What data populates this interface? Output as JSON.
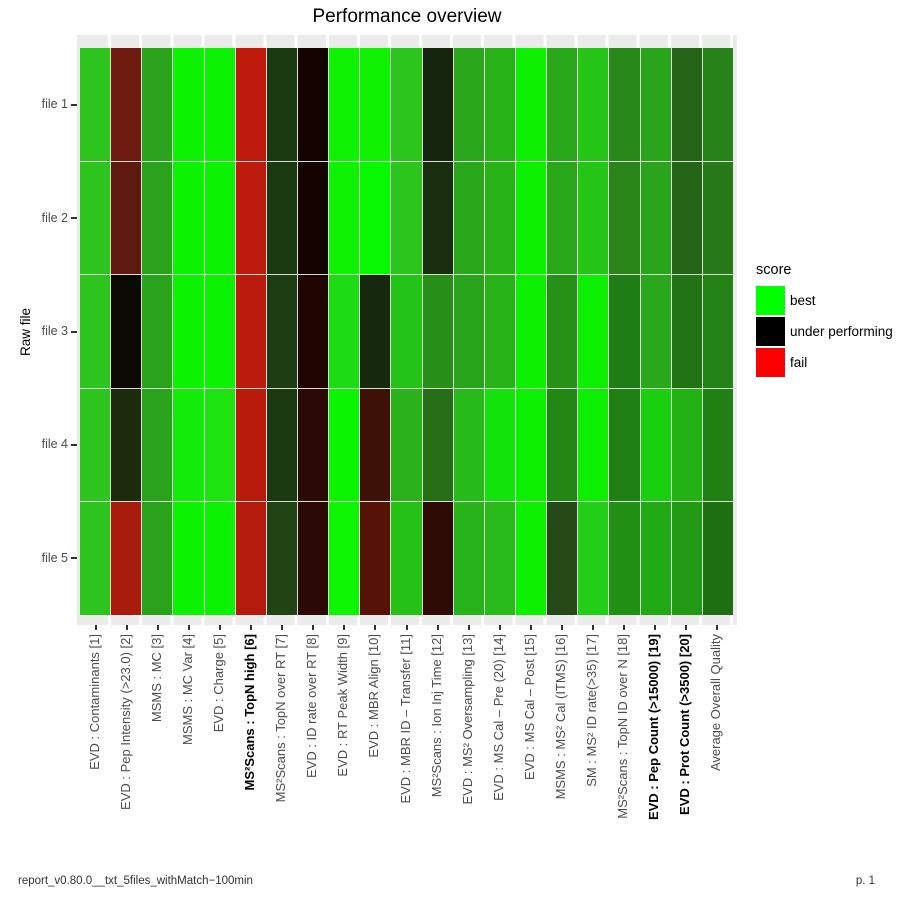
{
  "title": "Performance overview",
  "axes": {
    "y_title": "Raw file",
    "y_labels": [
      "file 1",
      "file 2",
      "file 3",
      "file 4",
      "file 5"
    ],
    "x_labels": [
      "EVD : Contaminants [1]",
      "EVD : Pep Intensity (>23.0) [2]",
      "MSMS : MC [3]",
      "MSMS : MC Var [4]",
      "EVD : Charge [5]",
      "MS²Scans : TopN high [6]",
      "MS²Scans : TopN over RT [7]",
      "EVD : ID rate over RT [8]",
      "EVD : RT Peak Width [9]",
      "EVD : MBR Align [10]",
      "EVD : MBR ID – Transfer [11]",
      "MS²Scans : Ion Inj Time [12]",
      "EVD : MS² Oversampling [13]",
      "EVD : MS Cal – Pre (20) [14]",
      "EVD : MS Cal – Post [15]",
      "MSMS : MS² Cal (ITMS) [16]",
      "SM : MS² ID rate(>35) [17]",
      "MS²Scans : TopN ID over N [18]",
      "EVD : Pep Count (>15000) [19]",
      "EVD : Prot Count (>3500) [20]",
      "Average Overall Quality"
    ],
    "x_bold_indices": [
      5,
      18,
      19
    ]
  },
  "legend": {
    "title": "score",
    "items": [
      {
        "label": "best",
        "color": "#00ff00"
      },
      {
        "label": "under performing",
        "color": "#000000"
      },
      {
        "label": "fail",
        "color": "#ff0000"
      }
    ]
  },
  "footer": {
    "left": "report_v0.80.0__txt_5files_withMatch−100min",
    "right": "p. 1"
  },
  "chart_data": {
    "type": "heatmap",
    "title": "Performance overview",
    "xlabel": "",
    "ylabel": "Raw file",
    "x_categories": [
      "EVD : Contaminants [1]",
      "EVD : Pep Intensity (>23.0) [2]",
      "MSMS : MC [3]",
      "MSMS : MC Var [4]",
      "EVD : Charge [5]",
      "MS²Scans : TopN high [6]",
      "MS²Scans : TopN over RT [7]",
      "EVD : ID rate over RT [8]",
      "EVD : RT Peak Width [9]",
      "EVD : MBR Align [10]",
      "EVD : MBR ID – Transfer [11]",
      "MS²Scans : Ion Inj Time [12]",
      "EVD : MS² Oversampling [13]",
      "EVD : MS Cal – Pre (20) [14]",
      "EVD : MS Cal – Post [15]",
      "MSMS : MS² Cal (ITMS) [16]",
      "SM : MS² ID rate(>35) [17]",
      "MS²Scans : TopN ID over N [18]",
      "EVD : Pep Count (>15000) [19]",
      "EVD : Prot Count (>3500) [20]",
      "Average Overall Quality"
    ],
    "y_categories": [
      "file 1",
      "file 2",
      "file 3",
      "file 4",
      "file 5"
    ],
    "color_scale": {
      "best": "#00ff00",
      "under_performing": "#000000",
      "fail": "#ff0000"
    },
    "legend_position": "right",
    "panel_background": "#ebebeb",
    "cell_colors": [
      [
        "#2dc41e",
        "#6e1c10",
        "#2aa31c",
        "#0bf203",
        "#0bf203",
        "#bf1b0c",
        "#1c3a12",
        "#150302",
        "#0ff202",
        "#0ff202",
        "#2bc51b",
        "#16260e",
        "#2aa71b",
        "#28b319",
        "#0cf101",
        "#2aa81b",
        "#25c617",
        "#28891a",
        "#2aa41a",
        "#266517",
        "#28821a"
      ],
      [
        "#2dc41e",
        "#5e1a10",
        "#2aa31c",
        "#0bf203",
        "#0bf203",
        "#bd1b0c",
        "#1c3a12",
        "#150302",
        "#0ff202",
        "#06f900",
        "#2bc51b",
        "#1a2e10",
        "#2aa71b",
        "#28b319",
        "#0cf101",
        "#2aa81b",
        "#25c617",
        "#298518",
        "#2aa41a",
        "#256517",
        "#287a18"
      ],
      [
        "#2dc41e",
        "#0a0903",
        "#2aa31c",
        "#0bf203",
        "#0bf203",
        "#bb1b0c",
        "#1e3d13",
        "#200603",
        "#1edc13",
        "#16280e",
        "#24c317",
        "#278f18",
        "#28a51a",
        "#28b319",
        "#0cf101",
        "#259117",
        "#0cf000",
        "#1f7e15",
        "#28a81a",
        "#217316",
        "#238216"
      ],
      [
        "#2dc41e",
        "#1c2a0e",
        "#2aa31c",
        "#12ec08",
        "#1ce411",
        "#b81b0c",
        "#1c3a12",
        "#2b0a05",
        "#0bf502",
        "#3d1107",
        "#2bb11b",
        "#256d16",
        "#26bb18",
        "#12e30a",
        "#0cf101",
        "#228714",
        "#0cf000",
        "#1f8014",
        "#19cf10",
        "#22b216",
        "#218014"
      ],
      [
        "#2dc41e",
        "#a81c0e",
        "#2aa31c",
        "#0bf203",
        "#0bf203",
        "#b51b0c",
        "#224414",
        "#2b0a05",
        "#0ef502",
        "#571208",
        "#25c117",
        "#2e0c05",
        "#28b31a",
        "#28bb19",
        "#0cf101",
        "#254a18",
        "#22cf16",
        "#209114",
        "#22a916",
        "#229a15",
        "#1e6f12"
      ]
    ]
  }
}
